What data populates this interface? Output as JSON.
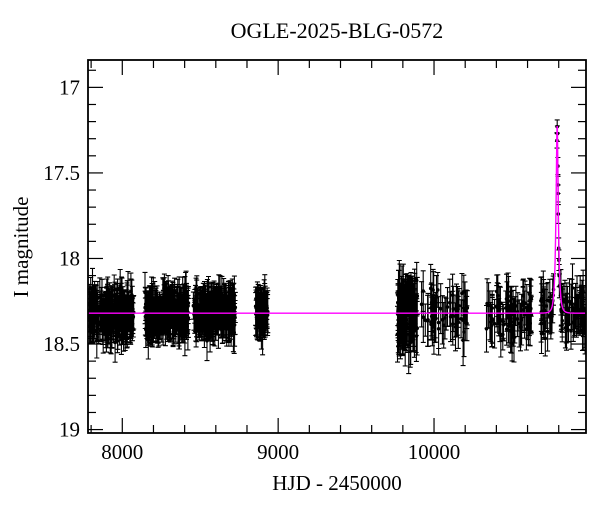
{
  "figure": {
    "background": "#ffffff",
    "text_color": "#000000",
    "frame_color": "#000000"
  },
  "chart_data": {
    "type": "scatter",
    "title": "OGLE-2025-BLG-0572",
    "xlabel": "HJD - 2450000",
    "ylabel": "I magnitude",
    "y_axis_inverted": true,
    "xlim": [
      7780,
      10975
    ],
    "ylim": [
      16.84,
      19.02
    ],
    "x_major_ticks": [
      {
        "value": 8000,
        "label": "8000"
      },
      {
        "value": 9000,
        "label": "9000"
      },
      {
        "value": 10000,
        "label": "10000"
      }
    ],
    "x_minor_step": 200,
    "y_major_ticks": [
      {
        "value": 17,
        "label": "17"
      },
      {
        "value": 17.5,
        "label": "17.5"
      },
      {
        "value": 18,
        "label": "18"
      },
      {
        "value": 18.5,
        "label": "18.5"
      },
      {
        "value": 19,
        "label": "19"
      }
    ],
    "y_minor_step": 0.1,
    "grid": false,
    "legend": "none",
    "point_color": "#000000",
    "errorbar_color": "#000000",
    "model_color": "#ff00ff",
    "baseline_mag": 18.32,
    "model": {
      "t0": 10790,
      "tE": 14,
      "u0": 0.385,
      "peak_mag": 17.22
    },
    "seasons": [
      {
        "hjd_start": 7785,
        "hjd_end": 8075,
        "n": 250,
        "sigma": 0.055,
        "err": 0.095
      },
      {
        "hjd_start": 8140,
        "hjd_end": 8425,
        "n": 250,
        "sigma": 0.055,
        "err": 0.095
      },
      {
        "hjd_start": 8455,
        "hjd_end": 8725,
        "n": 230,
        "sigma": 0.055,
        "err": 0.095
      },
      {
        "hjd_start": 8855,
        "hjd_end": 8935,
        "n": 65,
        "sigma": 0.05,
        "err": 0.095
      },
      {
        "hjd_start": 9765,
        "hjd_end": 9895,
        "n": 115,
        "sigma": 0.085,
        "err": 0.13
      },
      {
        "hjd_start": 9920,
        "hjd_end": 10230,
        "n": 55,
        "sigma": 0.07,
        "err": 0.115
      },
      {
        "hjd_start": 10335,
        "hjd_end": 10625,
        "n": 75,
        "sigma": 0.065,
        "err": 0.11
      },
      {
        "hjd_start": 10685,
        "hjd_end": 10970,
        "n": 80,
        "sigma": 0.065,
        "err": 0.11
      }
    ],
    "peak_points": [
      {
        "x": 10789.0,
        "mag": 17.31,
        "err": 0.045
      },
      {
        "x": 10790.1,
        "mag": 17.23,
        "err": 0.04
      },
      {
        "x": 10791.2,
        "mag": 17.27,
        "err": 0.045
      },
      {
        "x": 10794.5,
        "mag": 17.46,
        "err": 0.05
      },
      {
        "x": 10795.4,
        "mag": 17.57,
        "err": 0.05
      },
      {
        "x": 10796.0,
        "mag": 17.62,
        "err": 0.05
      },
      {
        "x": 10797.0,
        "mag": 17.74,
        "err": 0.055
      },
      {
        "x": 10799.8,
        "mag": 17.94,
        "err": 0.06
      },
      {
        "x": 10801.1,
        "mag": 18.01,
        "err": 0.06
      },
      {
        "x": 10803.0,
        "mag": 18.1,
        "err": 0.065
      },
      {
        "x": 10804.5,
        "mag": 18.16,
        "err": 0.07
      }
    ]
  }
}
